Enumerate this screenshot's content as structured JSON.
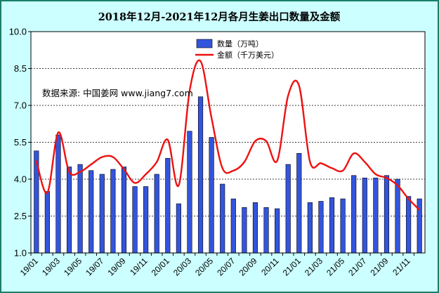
{
  "chart_data": {
    "type": "bar",
    "title": "2018年12月-2021年12月各月生姜出口数量及金额",
    "annotation": "数据来源: 中国姜网 www.jiang7.com",
    "xlabel": "",
    "ylabel": "",
    "ylim": [
      1.0,
      10.0
    ],
    "yticks": [
      "1.0",
      "2.5",
      "4.0",
      "5.5",
      "7.0",
      "8.5",
      "10.0"
    ],
    "grid": true,
    "legend_position": "top-center",
    "x_tick_labels": [
      "19/01",
      "19/03",
      "19/05",
      "19/07",
      "19/09",
      "19/11",
      "20/01",
      "20/03",
      "20/05",
      "20/07",
      "20/09",
      "20/11",
      "21/01",
      "21/03",
      "21/05",
      "21/07",
      "21/09",
      "21/11"
    ],
    "categories": [
      "19/01",
      "19/02",
      "19/03",
      "19/04",
      "19/05",
      "19/06",
      "19/07",
      "19/08",
      "19/09",
      "19/10",
      "19/11",
      "19/12",
      "20/01",
      "20/02",
      "20/03",
      "20/04",
      "20/05",
      "20/06",
      "20/07",
      "20/08",
      "20/09",
      "20/10",
      "20/11",
      "20/12",
      "21/01",
      "21/02",
      "21/03",
      "21/04",
      "21/05",
      "21/06",
      "21/07",
      "21/08",
      "21/09",
      "21/10",
      "21/11",
      "21/12"
    ],
    "series": [
      {
        "name": "数量（万吨）",
        "type": "bar",
        "color": "#3355dd",
        "values": [
          5.15,
          3.5,
          5.8,
          4.5,
          4.6,
          4.35,
          4.2,
          4.4,
          4.5,
          3.7,
          3.7,
          4.2,
          4.85,
          3.0,
          5.95,
          7.35,
          5.7,
          3.8,
          3.2,
          2.85,
          3.05,
          2.85,
          2.8,
          4.6,
          5.05,
          3.05,
          3.1,
          3.25,
          3.2,
          4.15,
          4.05,
          4.05,
          4.15,
          4.0,
          3.3,
          3.2
        ]
      },
      {
        "name": "金额（千万美元）",
        "type": "line",
        "color": "#ee1111",
        "values": [
          4.75,
          3.45,
          5.9,
          4.3,
          4.3,
          4.6,
          4.9,
          4.9,
          4.4,
          3.85,
          4.2,
          4.7,
          5.6,
          3.75,
          7.6,
          8.8,
          6.5,
          4.45,
          4.35,
          4.7,
          5.55,
          5.55,
          4.75,
          7.4,
          7.8,
          4.7,
          4.65,
          4.45,
          4.35,
          5.05,
          4.7,
          4.2,
          4.05,
          3.75,
          3.2,
          2.75
        ]
      }
    ]
  }
}
